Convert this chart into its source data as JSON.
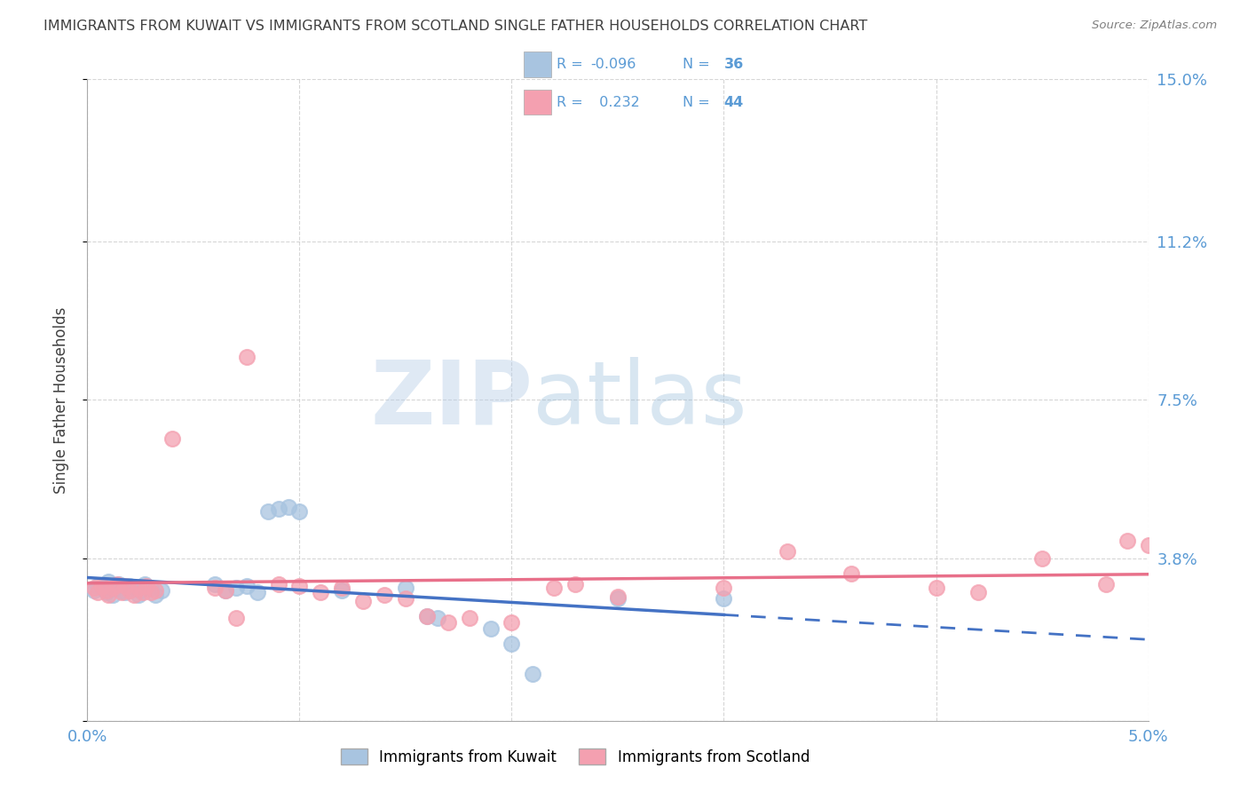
{
  "title": "IMMIGRANTS FROM KUWAIT VS IMMIGRANTS FROM SCOTLAND SINGLE FATHER HOUSEHOLDS CORRELATION CHART",
  "source": "Source: ZipAtlas.com",
  "ylabel": "Single Father Households",
  "xlim": [
    0.0,
    0.05
  ],
  "ylim": [
    0.0,
    0.15
  ],
  "yticks": [
    0.0,
    0.038,
    0.075,
    0.112,
    0.15
  ],
  "ytick_labels": [
    "",
    "3.8%",
    "7.5%",
    "11.2%",
    "15.0%"
  ],
  "xticks": [
    0.0,
    0.01,
    0.02,
    0.03,
    0.04,
    0.05
  ],
  "xtick_labels": [
    "0.0%",
    "",
    "",
    "",
    "",
    "5.0%"
  ],
  "watermark_zip": "ZIP",
  "watermark_atlas": "atlas",
  "legend_kuwait_r": "-0.096",
  "legend_kuwait_n": "36",
  "legend_scotland_r": "0.232",
  "legend_scotland_n": "44",
  "kuwait_color": "#a8c4e0",
  "scotland_color": "#f4a0b0",
  "kuwait_line_color": "#4472c4",
  "scotland_line_color": "#e8708a",
  "axis_color": "#5b9bd5",
  "title_color": "#404040",
  "source_color": "#808080",
  "grid_color": "#cccccc",
  "background_color": "#ffffff",
  "kuwait_points": [
    [
      0.0003,
      0.0305
    ],
    [
      0.0005,
      0.0315
    ],
    [
      0.0007,
      0.031
    ],
    [
      0.0009,
      0.03
    ],
    [
      0.001,
      0.0325
    ],
    [
      0.0012,
      0.0295
    ],
    [
      0.0013,
      0.031
    ],
    [
      0.0015,
      0.032
    ],
    [
      0.0016,
      0.0305
    ],
    [
      0.0018,
      0.03
    ],
    [
      0.002,
      0.0315
    ],
    [
      0.0022,
      0.031
    ],
    [
      0.0024,
      0.0295
    ],
    [
      0.0025,
      0.0305
    ],
    [
      0.0027,
      0.032
    ],
    [
      0.003,
      0.031
    ],
    [
      0.0032,
      0.0295
    ],
    [
      0.0035,
      0.0305
    ],
    [
      0.006,
      0.032
    ],
    [
      0.0065,
      0.0305
    ],
    [
      0.007,
      0.031
    ],
    [
      0.0075,
      0.0315
    ],
    [
      0.008,
      0.03
    ],
    [
      0.0085,
      0.049
    ],
    [
      0.009,
      0.0495
    ],
    [
      0.0095,
      0.05
    ],
    [
      0.01,
      0.049
    ],
    [
      0.012,
      0.0305
    ],
    [
      0.015,
      0.031
    ],
    [
      0.016,
      0.0245
    ],
    [
      0.0165,
      0.024
    ],
    [
      0.019,
      0.0215
    ],
    [
      0.02,
      0.018
    ],
    [
      0.021,
      0.011
    ],
    [
      0.025,
      0.0285
    ],
    [
      0.03,
      0.0285
    ]
  ],
  "scotland_points": [
    [
      0.0003,
      0.031
    ],
    [
      0.0005,
      0.03
    ],
    [
      0.0007,
      0.0315
    ],
    [
      0.0009,
      0.0305
    ],
    [
      0.001,
      0.0295
    ],
    [
      0.0012,
      0.031
    ],
    [
      0.0014,
      0.032
    ],
    [
      0.0016,
      0.03
    ],
    [
      0.0018,
      0.0315
    ],
    [
      0.002,
      0.0305
    ],
    [
      0.0022,
      0.0295
    ],
    [
      0.0024,
      0.031
    ],
    [
      0.0026,
      0.03
    ],
    [
      0.0028,
      0.0315
    ],
    [
      0.003,
      0.03
    ],
    [
      0.0032,
      0.0305
    ],
    [
      0.004,
      0.066
    ],
    [
      0.006,
      0.031
    ],
    [
      0.0065,
      0.0305
    ],
    [
      0.007,
      0.024
    ],
    [
      0.0075,
      0.085
    ],
    [
      0.009,
      0.032
    ],
    [
      0.01,
      0.0315
    ],
    [
      0.011,
      0.03
    ],
    [
      0.012,
      0.031
    ],
    [
      0.013,
      0.028
    ],
    [
      0.014,
      0.0295
    ],
    [
      0.015,
      0.0285
    ],
    [
      0.016,
      0.0245
    ],
    [
      0.017,
      0.023
    ],
    [
      0.018,
      0.024
    ],
    [
      0.02,
      0.023
    ],
    [
      0.022,
      0.031
    ],
    [
      0.023,
      0.032
    ],
    [
      0.025,
      0.029
    ],
    [
      0.03,
      0.031
    ],
    [
      0.033,
      0.0395
    ],
    [
      0.036,
      0.0345
    ],
    [
      0.04,
      0.031
    ],
    [
      0.042,
      0.03
    ],
    [
      0.045,
      0.038
    ],
    [
      0.048,
      0.032
    ],
    [
      0.049,
      0.042
    ],
    [
      0.05,
      0.041
    ]
  ]
}
